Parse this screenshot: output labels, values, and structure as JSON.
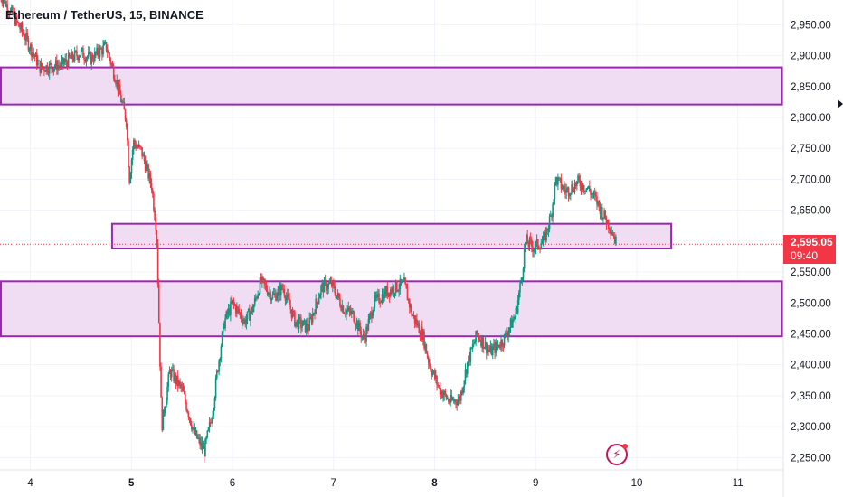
{
  "header": {
    "title": "Ethereum / TetherUS, 15, BINANCE"
  },
  "price_badge": {
    "price": "2,595.05",
    "timer": "09:40"
  },
  "icons": {
    "alert": "lightning-bolt-icon",
    "marker": "triangle-marker-icon"
  },
  "colors": {
    "up": "#089981",
    "down": "#f23645",
    "zone_fill": "#eed9f2",
    "zone_border": "#9c27b0",
    "badge": "#f23645"
  },
  "chart_data": {
    "type": "candlestick",
    "symbol": "Ethereum / TetherUS",
    "interval": "15",
    "exchange": "BINANCE",
    "ylim": [
      2230,
      2990
    ],
    "y_ticks": [
      2250,
      2300,
      2350,
      2400,
      2450,
      2500,
      2550,
      2600,
      2650,
      2700,
      2750,
      2800,
      2850,
      2900,
      2950
    ],
    "y_tick_labels": [
      "2,250.00",
      "2,300.00",
      "2,350.00",
      "2,400.00",
      "2,450.00",
      "2,500.00",
      "2,550.00",
      "2,600.00",
      "2,650.00",
      "2,700.00",
      "2,750.00",
      "2,800.00",
      "2,850.00",
      "2,900.00",
      "2,950.00"
    ],
    "xlim": [
      3.7,
      11.45
    ],
    "x_ticks": [
      4,
      5,
      6,
      7,
      8,
      9,
      10,
      11
    ],
    "x_tick_labels": [
      "4",
      "5",
      "6",
      "7",
      "8",
      "9",
      "10",
      "11"
    ],
    "last_price": 2595.05,
    "zones": [
      {
        "x_start": 3.7,
        "x_end": 11.45,
        "low": 2821,
        "high": 2881
      },
      {
        "x_start": 4.8,
        "x_end": 10.35,
        "low": 2588,
        "high": 2628
      },
      {
        "x_start": 3.7,
        "x_end": 11.45,
        "low": 2446,
        "high": 2535
      }
    ],
    "price_path": [
      [
        3.7,
        3000
      ],
      [
        3.95,
        2930
      ],
      [
        4.1,
        2880
      ],
      [
        4.3,
        2885
      ],
      [
        4.5,
        2905
      ],
      [
        4.6,
        2895
      ],
      [
        4.75,
        2915
      ],
      [
        4.85,
        2860
      ],
      [
        4.95,
        2795
      ],
      [
        4.98,
        2700
      ],
      [
        5.02,
        2760
      ],
      [
        5.1,
        2745
      ],
      [
        5.2,
        2690
      ],
      [
        5.25,
        2615
      ],
      [
        5.3,
        2300
      ],
      [
        5.38,
        2390
      ],
      [
        5.5,
        2360
      ],
      [
        5.62,
        2290
      ],
      [
        5.72,
        2260
      ],
      [
        5.8,
        2320
      ],
      [
        5.85,
        2390
      ],
      [
        5.92,
        2470
      ],
      [
        6.0,
        2500
      ],
      [
        6.12,
        2470
      ],
      [
        6.2,
        2490
      ],
      [
        6.28,
        2535
      ],
      [
        6.4,
        2510
      ],
      [
        6.5,
        2525
      ],
      [
        6.62,
        2470
      ],
      [
        6.75,
        2460
      ],
      [
        6.88,
        2525
      ],
      [
        6.98,
        2530
      ],
      [
        7.1,
        2490
      ],
      [
        7.2,
        2480
      ],
      [
        7.3,
        2440
      ],
      [
        7.4,
        2500
      ],
      [
        7.5,
        2515
      ],
      [
        7.6,
        2525
      ],
      [
        7.7,
        2530
      ],
      [
        7.78,
        2480
      ],
      [
        7.88,
        2450
      ],
      [
        7.95,
        2400
      ],
      [
        8.05,
        2360
      ],
      [
        8.15,
        2340
      ],
      [
        8.25,
        2345
      ],
      [
        8.32,
        2400
      ],
      [
        8.42,
        2450
      ],
      [
        8.55,
        2420
      ],
      [
        8.68,
        2440
      ],
      [
        8.8,
        2480
      ],
      [
        8.86,
        2540
      ],
      [
        8.9,
        2600
      ],
      [
        8.98,
        2590
      ],
      [
        9.08,
        2600
      ],
      [
        9.15,
        2640
      ],
      [
        9.2,
        2700
      ],
      [
        9.3,
        2680
      ],
      [
        9.42,
        2695
      ],
      [
        9.52,
        2685
      ],
      [
        9.6,
        2665
      ],
      [
        9.68,
        2640
      ],
      [
        9.75,
        2620
      ],
      [
        9.8,
        2595
      ]
    ]
  }
}
